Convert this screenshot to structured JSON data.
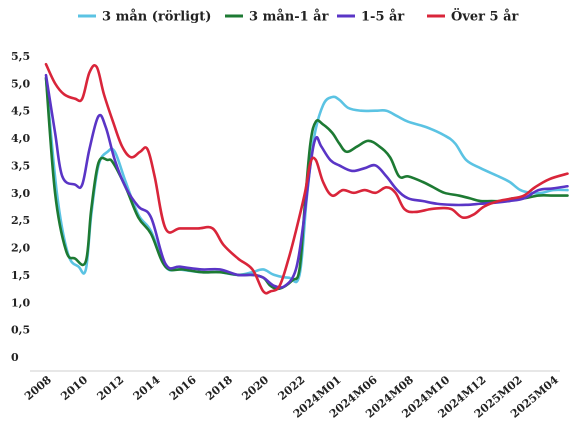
{
  "chart_data": {
    "type": "line",
    "title": "",
    "xlabel": "",
    "ylabel": "",
    "ylim": [
      0,
      5.5
    ],
    "yticks": [
      "0",
      "0,5",
      "1,0",
      "1,5",
      "2,0",
      "2,5",
      "3,0",
      "3,5",
      "4,0",
      "4,5",
      "5,0",
      "5,5"
    ],
    "categories": [
      "2008",
      "2010",
      "2012",
      "2014",
      "2016",
      "2018",
      "2020",
      "2022",
      "2024M01",
      "2024M06",
      "2024M08",
      "2024M10",
      "2024M12",
      "2025M02",
      "2025M04"
    ],
    "grid": false,
    "legend_position": "top",
    "series": [
      {
        "name": "3 mån (rörligt)",
        "color": "#5bc3e3",
        "points": [
          [
            0.0,
            5.1
          ],
          [
            0.3,
            3.0
          ],
          [
            0.6,
            1.9
          ],
          [
            0.9,
            1.65
          ],
          [
            1.1,
            1.6
          ],
          [
            1.25,
            2.6
          ],
          [
            1.45,
            3.5
          ],
          [
            1.7,
            3.75
          ],
          [
            1.9,
            3.75
          ],
          [
            2.2,
            3.2
          ],
          [
            2.55,
            2.6
          ],
          [
            2.9,
            2.3
          ],
          [
            3.3,
            1.65
          ],
          [
            3.7,
            1.6
          ],
          [
            4.3,
            1.55
          ],
          [
            4.8,
            1.55
          ],
          [
            5.3,
            1.5
          ],
          [
            5.7,
            1.55
          ],
          [
            6.0,
            1.6
          ],
          [
            6.3,
            1.5
          ],
          [
            6.7,
            1.45
          ],
          [
            7.0,
            1.5
          ],
          [
            7.2,
            2.9
          ],
          [
            7.4,
            4.0
          ],
          [
            7.65,
            4.6
          ],
          [
            7.9,
            4.75
          ],
          [
            8.1,
            4.7
          ],
          [
            8.35,
            4.55
          ],
          [
            8.7,
            4.5
          ],
          [
            9.1,
            4.5
          ],
          [
            9.4,
            4.5
          ],
          [
            9.7,
            4.4
          ],
          [
            10.0,
            4.3
          ],
          [
            10.5,
            4.2
          ],
          [
            11.0,
            4.05
          ],
          [
            11.3,
            3.9
          ],
          [
            11.6,
            3.6
          ],
          [
            12.0,
            3.45
          ],
          [
            12.5,
            3.3
          ],
          [
            12.8,
            3.2
          ],
          [
            13.1,
            3.05
          ],
          [
            13.4,
            3.0
          ],
          [
            13.7,
            3.0
          ],
          [
            14.0,
            3.05
          ],
          [
            14.4,
            3.05
          ]
        ]
      },
      {
        "name": "3 mån-1 år",
        "color": "#1d7a33",
        "points": [
          [
            0.0,
            5.1
          ],
          [
            0.25,
            3.0
          ],
          [
            0.55,
            1.95
          ],
          [
            0.8,
            1.8
          ],
          [
            1.1,
            1.75
          ],
          [
            1.25,
            2.7
          ],
          [
            1.45,
            3.55
          ],
          [
            1.7,
            3.6
          ],
          [
            1.85,
            3.55
          ],
          [
            2.2,
            3.1
          ],
          [
            2.55,
            2.55
          ],
          [
            2.9,
            2.25
          ],
          [
            3.3,
            1.65
          ],
          [
            3.8,
            1.6
          ],
          [
            4.3,
            1.55
          ],
          [
            4.8,
            1.55
          ],
          [
            5.3,
            1.5
          ],
          [
            5.7,
            1.5
          ],
          [
            6.0,
            1.45
          ],
          [
            6.2,
            1.3
          ],
          [
            6.45,
            1.25
          ],
          [
            6.8,
            1.4
          ],
          [
            7.0,
            1.6
          ],
          [
            7.15,
            2.8
          ],
          [
            7.3,
            3.9
          ],
          [
            7.45,
            4.3
          ],
          [
            7.65,
            4.25
          ],
          [
            7.9,
            4.1
          ],
          [
            8.1,
            3.9
          ],
          [
            8.3,
            3.75
          ],
          [
            8.6,
            3.85
          ],
          [
            8.9,
            3.95
          ],
          [
            9.2,
            3.85
          ],
          [
            9.5,
            3.65
          ],
          [
            9.75,
            3.3
          ],
          [
            10.0,
            3.3
          ],
          [
            10.4,
            3.2
          ],
          [
            10.7,
            3.1
          ],
          [
            11.0,
            3.0
          ],
          [
            11.4,
            2.95
          ],
          [
            11.7,
            2.9
          ],
          [
            12.0,
            2.85
          ],
          [
            12.3,
            2.85
          ],
          [
            12.6,
            2.85
          ],
          [
            12.9,
            2.9
          ],
          [
            13.2,
            2.9
          ],
          [
            13.6,
            2.95
          ],
          [
            14.0,
            2.95
          ],
          [
            14.4,
            2.95
          ]
        ]
      },
      {
        "name": "1-5 år",
        "color": "#5a35c6",
        "points": [
          [
            0.0,
            5.15
          ],
          [
            0.25,
            4.1
          ],
          [
            0.45,
            3.3
          ],
          [
            0.8,
            3.15
          ],
          [
            1.0,
            3.15
          ],
          [
            1.2,
            3.8
          ],
          [
            1.45,
            4.4
          ],
          [
            1.65,
            4.2
          ],
          [
            1.9,
            3.6
          ],
          [
            2.2,
            3.1
          ],
          [
            2.55,
            2.75
          ],
          [
            2.9,
            2.55
          ],
          [
            3.3,
            1.7
          ],
          [
            3.7,
            1.65
          ],
          [
            4.3,
            1.6
          ],
          [
            4.8,
            1.6
          ],
          [
            5.3,
            1.5
          ],
          [
            5.7,
            1.5
          ],
          [
            6.0,
            1.45
          ],
          [
            6.3,
            1.3
          ],
          [
            6.6,
            1.3
          ],
          [
            6.9,
            1.6
          ],
          [
            7.1,
            2.4
          ],
          [
            7.3,
            3.5
          ],
          [
            7.45,
            4.0
          ],
          [
            7.6,
            3.85
          ],
          [
            7.85,
            3.6
          ],
          [
            8.1,
            3.5
          ],
          [
            8.45,
            3.4
          ],
          [
            8.8,
            3.45
          ],
          [
            9.1,
            3.5
          ],
          [
            9.4,
            3.3
          ],
          [
            9.7,
            3.05
          ],
          [
            10.0,
            2.9
          ],
          [
            10.4,
            2.85
          ],
          [
            10.8,
            2.8
          ],
          [
            11.2,
            2.78
          ],
          [
            11.6,
            2.78
          ],
          [
            12.0,
            2.8
          ],
          [
            12.4,
            2.82
          ],
          [
            12.8,
            2.85
          ],
          [
            13.2,
            2.9
          ],
          [
            13.6,
            3.05
          ],
          [
            14.0,
            3.08
          ],
          [
            14.4,
            3.12
          ]
        ]
      },
      {
        "name": "Över 5 år",
        "color": "#d9253a",
        "points": [
          [
            0.0,
            5.35
          ],
          [
            0.25,
            5.0
          ],
          [
            0.5,
            4.8
          ],
          [
            0.8,
            4.72
          ],
          [
            1.0,
            4.72
          ],
          [
            1.2,
            5.2
          ],
          [
            1.4,
            5.3
          ],
          [
            1.6,
            4.8
          ],
          [
            1.85,
            4.3
          ],
          [
            2.1,
            3.85
          ],
          [
            2.35,
            3.65
          ],
          [
            2.6,
            3.75
          ],
          [
            2.8,
            3.8
          ],
          [
            3.0,
            3.3
          ],
          [
            3.3,
            2.35
          ],
          [
            3.7,
            2.35
          ],
          [
            4.2,
            2.35
          ],
          [
            4.6,
            2.35
          ],
          [
            4.9,
            2.05
          ],
          [
            5.3,
            1.8
          ],
          [
            5.7,
            1.6
          ],
          [
            6.0,
            1.2
          ],
          [
            6.2,
            1.2
          ],
          [
            6.45,
            1.3
          ],
          [
            6.7,
            1.8
          ],
          [
            6.9,
            2.3
          ],
          [
            7.15,
            3.0
          ],
          [
            7.3,
            3.55
          ],
          [
            7.45,
            3.6
          ],
          [
            7.65,
            3.2
          ],
          [
            7.9,
            2.95
          ],
          [
            8.2,
            3.05
          ],
          [
            8.5,
            3.0
          ],
          [
            8.8,
            3.05
          ],
          [
            9.1,
            3.0
          ],
          [
            9.4,
            3.1
          ],
          [
            9.65,
            3.0
          ],
          [
            9.9,
            2.7
          ],
          [
            10.2,
            2.65
          ],
          [
            10.6,
            2.7
          ],
          [
            10.9,
            2.72
          ],
          [
            11.2,
            2.7
          ],
          [
            11.5,
            2.55
          ],
          [
            11.8,
            2.6
          ],
          [
            12.1,
            2.75
          ],
          [
            12.5,
            2.85
          ],
          [
            12.9,
            2.9
          ],
          [
            13.2,
            2.95
          ],
          [
            13.5,
            3.1
          ],
          [
            13.9,
            3.25
          ],
          [
            14.4,
            3.35
          ]
        ]
      }
    ]
  }
}
